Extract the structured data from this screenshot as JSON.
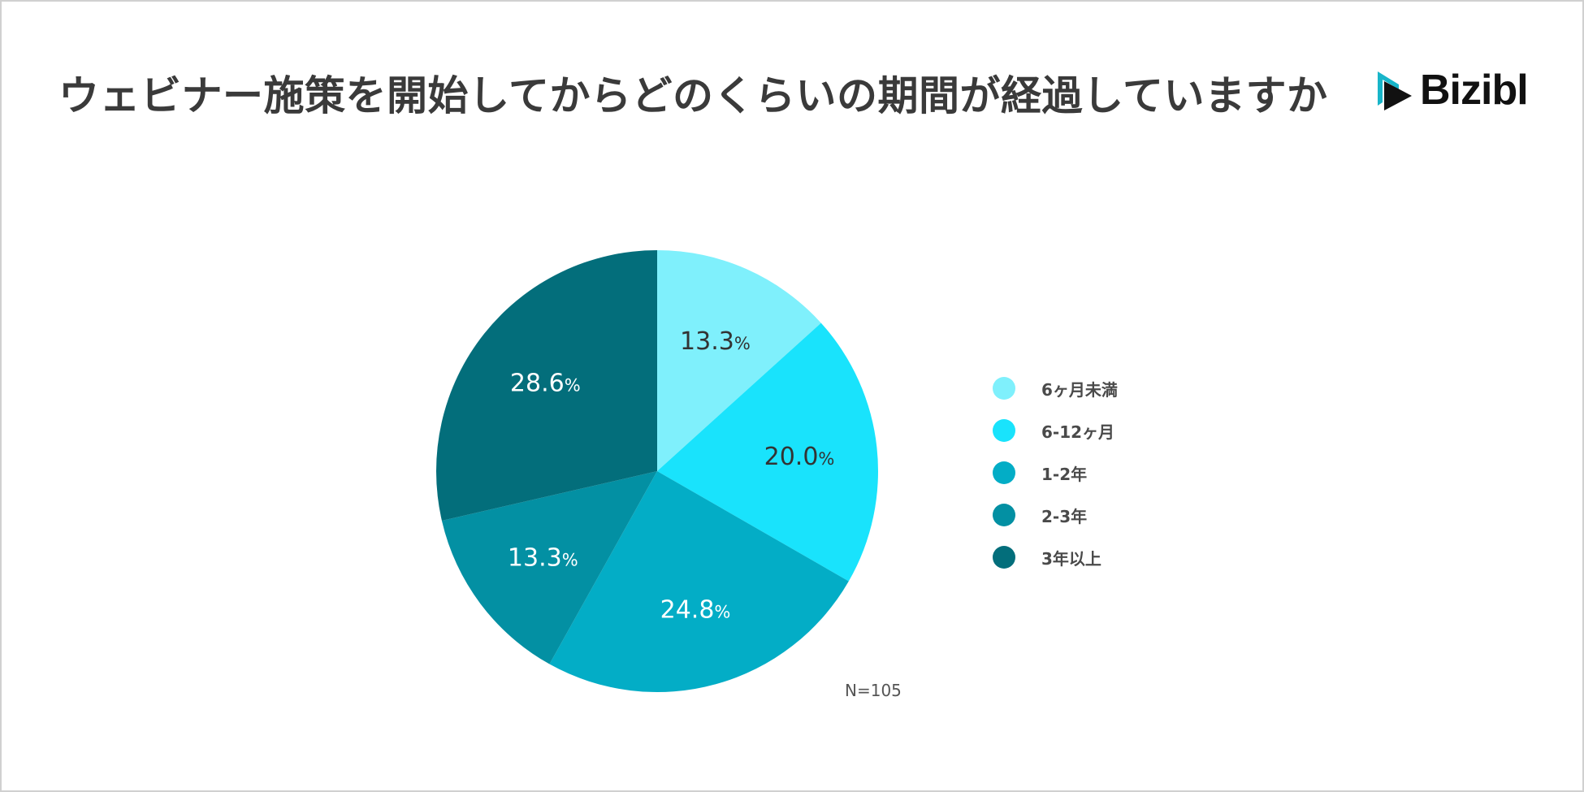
{
  "title": "ウェビナー施策を開始してからどのくらいの期間が経過していますか",
  "logo": {
    "text": "Bizibl",
    "mark_colors": [
      "#18b5c9",
      "#111111"
    ]
  },
  "note": "N=105",
  "chart_data": {
    "type": "pie",
    "title": "ウェビナー施策を開始してからどのくらいの期間が経過していますか",
    "percent_suffix": "%",
    "start_angle_deg": 0,
    "direction": "clockwise",
    "slices": [
      {
        "label": "6ヶ月未満",
        "value": 13.3,
        "display": "13.3",
        "color": "#7ff0fc",
        "label_color": "#333333"
      },
      {
        "label": "6-12ヶ月",
        "value": 20.0,
        "display": "20.0",
        "color": "#19e3fc",
        "label_color": "#333333"
      },
      {
        "label": "1-2年",
        "value": 24.8,
        "display": "24.8",
        "color": "#03adc6",
        "label_color": "#ffffff"
      },
      {
        "label": "2-3年",
        "value": 13.3,
        "display": "13.3",
        "color": "#0390a3",
        "label_color": "#ffffff"
      },
      {
        "label": "3年以上",
        "value": 28.6,
        "display": "28.6",
        "color": "#036e7b",
        "label_color": "#ffffff"
      }
    ],
    "legend_position": "right"
  }
}
